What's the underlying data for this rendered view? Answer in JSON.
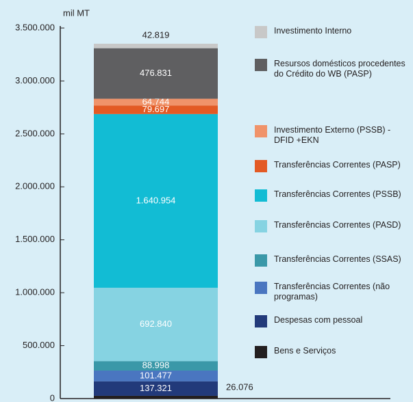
{
  "chart_data": {
    "type": "stacked_bar",
    "y_label": "mil MT",
    "categories": [
      null
    ],
    "series": [
      {
        "name": "Bens e Serviços",
        "color": "#231f20",
        "values": [
          26076
        ],
        "value_labels": [
          "26.076"
        ]
      },
      {
        "name": "Despesas com pessoal",
        "color": "#223a7a",
        "values": [
          137321
        ],
        "value_labels": [
          "137.321"
        ]
      },
      {
        "name": "Transferências Correntes (não programas)",
        "color": "#4a76c0",
        "values": [
          101477
        ],
        "value_labels": [
          "101.477"
        ]
      },
      {
        "name": "Transferências Correntes (SSAS)",
        "color": "#3a98a8",
        "values": [
          88998
        ],
        "value_labels": [
          "88.998"
        ]
      },
      {
        "name": "Transferências Correntes (PASD)",
        "color": "#86d3e2",
        "values": [
          692840
        ],
        "value_labels": [
          "692.840"
        ]
      },
      {
        "name": "Transferências Correntes (PSSB)",
        "color": "#12bcd4",
        "values": [
          1640954
        ],
        "value_labels": [
          "1.640.954"
        ]
      },
      {
        "name": "Transferências Correntes (PASP)",
        "color": "#e35a24",
        "values": [
          79697
        ],
        "value_labels": [
          "79.697"
        ]
      },
      {
        "name": "Investimento  Externo (PSSB) - DFID +EKN",
        "color": "#f0936a",
        "values": [
          64744
        ],
        "value_labels": [
          "64.744"
        ]
      },
      {
        "name": "Resursos domésticos procedentes do Crédito do WB (PASP)",
        "color": "#5f5f61",
        "values": [
          476831
        ],
        "value_labels": [
          "476.831"
        ]
      },
      {
        "name": "Investimento Interno",
        "color": "#c8c8c8",
        "values": [
          42819
        ],
        "value_labels": [
          "42.819"
        ]
      }
    ],
    "ylim": [
      0,
      3500000
    ],
    "yticks": [
      0,
      {
        "value": 500000,
        "label": "500.000"
      },
      {
        "value": 1000000,
        "label": "1.000.000"
      },
      {
        "value": 1500000,
        "label": "1.500.000"
      },
      {
        "value": 2000000,
        "label": "2.000.000"
      },
      {
        "value": 2500000,
        "label": "2.500.000"
      },
      {
        "value": 3000000,
        "label": "3.000.000"
      },
      {
        "value": 3500000,
        "label": "3.500.000"
      }
    ]
  }
}
